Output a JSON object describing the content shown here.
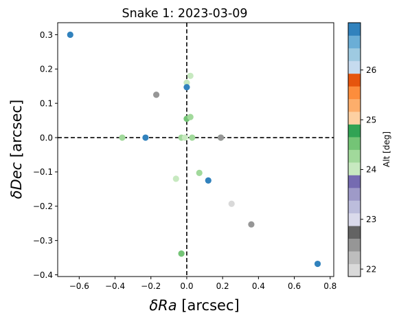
{
  "chart_data": {
    "type": "scatter",
    "title": "Snake 1: 2023-03-09",
    "xlabel_math": "δRa",
    "xlabel_unit": " [arcsec]",
    "ylabel_math": "δDec",
    "ylabel_unit": " [arcsec]",
    "xlim": [
      -0.72,
      0.82
    ],
    "ylim": [
      -0.405,
      0.335
    ],
    "xticks": [
      -0.6,
      -0.4,
      -0.2,
      0.0,
      0.2,
      0.4,
      0.6,
      0.8
    ],
    "xtick_labels": [
      "−0.6",
      "−0.4",
      "−0.2",
      "0.0",
      "0.2",
      "0.4",
      "0.6",
      "0.8"
    ],
    "yticks": [
      0.3,
      0.2,
      0.1,
      0.0,
      -0.1,
      -0.2,
      -0.3,
      -0.4
    ],
    "ytick_labels": [
      "0.3",
      "0.2",
      "0.1",
      "0.0",
      "−0.1",
      "−0.2",
      "−0.3",
      "−0.4"
    ],
    "reference_lines": {
      "x": 0,
      "y": 0,
      "style": "dashed",
      "color": "#000000"
    },
    "grid": false,
    "colorbar": {
      "label": "Alt [deg]",
      "range": [
        21.85,
        26.95
      ],
      "ticks": [
        22,
        23,
        24,
        25,
        26
      ],
      "tick_labels": [
        "22",
        "23",
        "24",
        "25",
        "26"
      ],
      "colormap": "tab20c",
      "colors": [
        "#d9d9d9",
        "#bdbdbd",
        "#969696",
        "#636363",
        "#dadaeb",
        "#bcbddc",
        "#9e9ac8",
        "#756bb1",
        "#c7e9c0",
        "#a1d99b",
        "#74c476",
        "#31a354",
        "#fdd0a2",
        "#fdae6b",
        "#fd8d3c",
        "#e6550d",
        "#c6dbef",
        "#9ecae1",
        "#6baed6",
        "#3182bd"
      ]
    },
    "points": [
      {
        "x": -0.65,
        "y": 0.3,
        "alt": 26.8
      },
      {
        "x": -0.17,
        "y": 0.125,
        "alt": 22.4
      },
      {
        "x": 0.0,
        "y": 0.16,
        "alt": 24.0
      },
      {
        "x": 0.02,
        "y": 0.18,
        "alt": 24.0
      },
      {
        "x": 0.0,
        "y": 0.147,
        "alt": 26.8
      },
      {
        "x": 0.0,
        "y": 0.055,
        "alt": 24.6
      },
      {
        "x": 0.02,
        "y": 0.06,
        "alt": 24.4
      },
      {
        "x": -0.36,
        "y": 0.0,
        "alt": 24.2
      },
      {
        "x": -0.23,
        "y": 0.0,
        "alt": 26.8
      },
      {
        "x": -0.03,
        "y": 0.0,
        "alt": 24.2
      },
      {
        "x": -0.01,
        "y": 0.0,
        "alt": 24.0
      },
      {
        "x": 0.03,
        "y": 0.0,
        "alt": 24.4
      },
      {
        "x": 0.19,
        "y": 0.0,
        "alt": 24.4
      },
      {
        "x": 0.19,
        "y": 0.0,
        "alt": 22.6
      },
      {
        "x": 0.07,
        "y": -0.103,
        "alt": 24.4
      },
      {
        "x": -0.06,
        "y": -0.12,
        "alt": 24.0
      },
      {
        "x": 0.12,
        "y": -0.125,
        "alt": 26.8
      },
      {
        "x": 0.25,
        "y": -0.193,
        "alt": 22.1
      },
      {
        "x": 0.36,
        "y": -0.253,
        "alt": 22.4
      },
      {
        "x": -0.03,
        "y": -0.338,
        "alt": 24.6
      },
      {
        "x": 0.73,
        "y": -0.368,
        "alt": 26.8
      }
    ]
  }
}
